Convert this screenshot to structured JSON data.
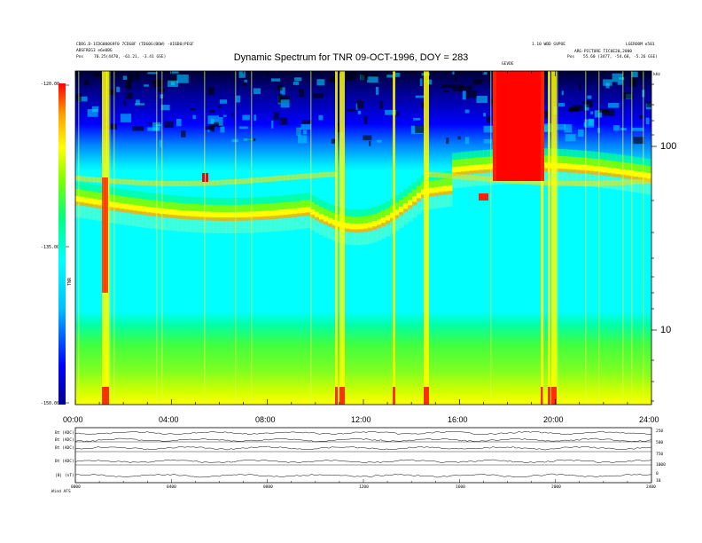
{
  "chart_data": {
    "type": "heatmap",
    "title": "Dynamic Spectrum for TNR 09-OCT-1996, DOY = 283",
    "x_ticks": [
      "00:00",
      "04:00",
      "08:00",
      "12:00",
      "16:00",
      "20:00",
      "24:00"
    ],
    "y_ticks": [
      "100",
      "10"
    ],
    "ylabel": "kHz",
    "colorbar": {
      "label": "TNR",
      "ticks": [
        "-120.00",
        "-135.00",
        "-150.00"
      ],
      "range": [
        -150,
        -120
      ],
      "colors": [
        "#00008b",
        "#0000ff",
        "#00bfff",
        "#00ffff",
        "#00ff7f",
        "#7fff00",
        "#ffff00",
        "#ffa500",
        "#ff0000"
      ]
    },
    "grid": false
  },
  "header": {
    "left_line1": "CDDG.D-1CDG000G9F0 7CDG8F (TDG0G(BOW) -UI6D0(PEGF",
    "left_line2": "ABSFREG3 e6e0BG",
    "left_pos_label": "Pos",
    "left_pos_value": "70.25(4470, -61.21, -3.41 GSE)",
    "mid_tag": "GEVDE",
    "right_line1": "1.10 WBD GVPOE",
    "right_line2": "LGEROOM e501",
    "right_line3": "ARG-PICTURE TIC0E20,2000",
    "right_pos_label": "Pos",
    "right_pos_value": "55.60 (3477, -54.68, -5.26 GSE)"
  },
  "aux_panel": {
    "labels": [
      "Bt (ADC)",
      "Bt (ADC)",
      "Bt (ADC)",
      "Bt (ADC)",
      "|B| (nT)"
    ],
    "right_axis": [
      "250",
      "500",
      "750",
      "1000",
      "0",
      "10"
    ],
    "x_ticks": [
      "0000",
      "0400",
      "0800",
      "1200",
      "1600",
      "2000",
      "2400"
    ],
    "footer": "Wind    AFS"
  }
}
